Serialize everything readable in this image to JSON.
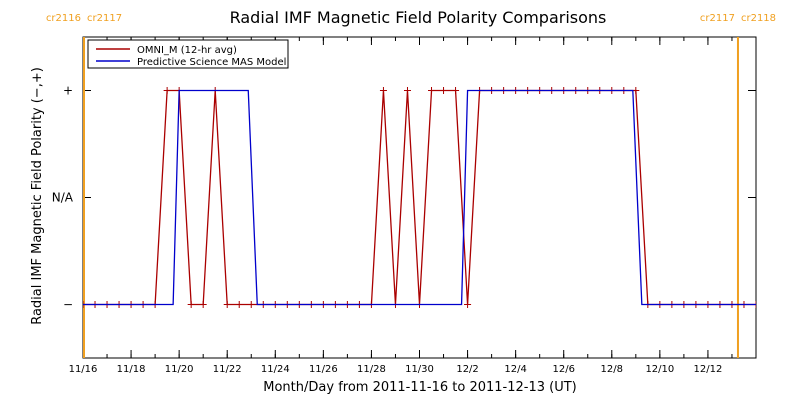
{
  "chart_data": {
    "type": "line",
    "title": "Radial IMF Magnetic Field Polarity Comparisons",
    "xlabel": "Month/Day from 2011-11-16 to 2011-12-13 (UT)",
    "ylabel": "Radial IMF Magnetic Field Polarity (−,+)",
    "x_range": [
      "2011-11-16T00:00",
      "2011-12-13T24:00"
    ],
    "ylim": [
      -1.5,
      1.5
    ],
    "y_ticks": [
      {
        "value": 1,
        "label": "+"
      },
      {
        "value": 0,
        "label": "N/A"
      },
      {
        "value": -1,
        "label": "−"
      }
    ],
    "x_ticks": [
      {
        "date": "2011-11-16",
        "label": "11/16"
      },
      {
        "date": "2011-11-18",
        "label": "11/18"
      },
      {
        "date": "2011-11-20",
        "label": "11/20"
      },
      {
        "date": "2011-11-22",
        "label": "11/22"
      },
      {
        "date": "2011-11-24",
        "label": "11/24"
      },
      {
        "date": "2011-11-26",
        "label": "11/26"
      },
      {
        "date": "2011-11-28",
        "label": "11/28"
      },
      {
        "date": "2011-11-30",
        "label": "11/30"
      },
      {
        "date": "2011-12-02",
        "label": "12/2"
      },
      {
        "date": "2011-12-04",
        "label": "12/4"
      },
      {
        "date": "2011-12-06",
        "label": "12/6"
      },
      {
        "date": "2011-12-08",
        "label": "12/8"
      },
      {
        "date": "2011-12-10",
        "label": "12/10"
      },
      {
        "date": "2011-12-12",
        "label": "12/12"
      }
    ],
    "carrington_rotations": [
      {
        "date": "2011-11-16T01:00",
        "left_label": "cr2116",
        "right_label": "cr2117"
      },
      {
        "date": "2011-12-13T06:00",
        "left_label": "cr2117",
        "right_label": "cr2118"
      }
    ],
    "legend_position": "top-left",
    "series": [
      {
        "name": "OMNI_M (12-hr avg)",
        "color": "#aa0000",
        "markers": true,
        "points": [
          [
            "2011-11-16T00:00",
            -1
          ],
          [
            "2011-11-16T12:00",
            -1
          ],
          [
            "2011-11-17T00:00",
            -1
          ],
          [
            "2011-11-17T12:00",
            -1
          ],
          [
            "2011-11-18T00:00",
            -1
          ],
          [
            "2011-11-18T12:00",
            -1
          ],
          [
            "2011-11-19T00:00",
            -1
          ],
          [
            "2011-11-19T12:00",
            1
          ],
          [
            "2011-11-20T00:00",
            1
          ],
          [
            "2011-11-20T12:00",
            -1
          ],
          [
            "2011-11-21T00:00",
            -1
          ],
          [
            "2011-11-21T12:00",
            1
          ],
          [
            "2011-11-22T00:00",
            -1
          ],
          [
            "2011-11-22T12:00",
            -1
          ],
          [
            "2011-11-23T00:00",
            -1
          ],
          [
            "2011-11-23T12:00",
            -1
          ],
          [
            "2011-11-24T00:00",
            -1
          ],
          [
            "2011-11-24T12:00",
            -1
          ],
          [
            "2011-11-25T00:00",
            -1
          ],
          [
            "2011-11-25T12:00",
            -1
          ],
          [
            "2011-11-26T00:00",
            -1
          ],
          [
            "2011-11-26T12:00",
            -1
          ],
          [
            "2011-11-27T00:00",
            -1
          ],
          [
            "2011-11-27T12:00",
            -1
          ],
          [
            "2011-11-28T00:00",
            -1
          ],
          [
            "2011-11-28T12:00",
            1
          ],
          [
            "2011-11-29T00:00",
            -1
          ],
          [
            "2011-11-29T12:00",
            1
          ],
          [
            "2011-11-30T00:00",
            -1
          ],
          [
            "2011-11-30T12:00",
            1
          ],
          [
            "2011-12-01T00:00",
            1
          ],
          [
            "2011-12-01T12:00",
            1
          ],
          [
            "2011-12-02T00:00",
            -1
          ],
          [
            "2011-12-02T12:00",
            1
          ],
          [
            "2011-12-03T00:00",
            1
          ],
          [
            "2011-12-03T12:00",
            1
          ],
          [
            "2011-12-04T00:00",
            1
          ],
          [
            "2011-12-04T12:00",
            1
          ],
          [
            "2011-12-05T00:00",
            1
          ],
          [
            "2011-12-05T12:00",
            1
          ],
          [
            "2011-12-06T00:00",
            1
          ],
          [
            "2011-12-06T12:00",
            1
          ],
          [
            "2011-12-07T00:00",
            1
          ],
          [
            "2011-12-07T12:00",
            1
          ],
          [
            "2011-12-08T00:00",
            1
          ],
          [
            "2011-12-08T12:00",
            1
          ],
          [
            "2011-12-09T00:00",
            1
          ],
          [
            "2011-12-09T12:00",
            -1
          ],
          [
            "2011-12-10T00:00",
            -1
          ],
          [
            "2011-12-10T12:00",
            -1
          ],
          [
            "2011-12-11T00:00",
            -1
          ],
          [
            "2011-12-11T12:00",
            -1
          ],
          [
            "2011-12-12T00:00",
            -1
          ],
          [
            "2011-12-12T12:00",
            -1
          ],
          [
            "2011-12-13T00:00",
            -1
          ],
          [
            "2011-12-13T12:00",
            -1
          ],
          [
            "2011-12-14T00:00",
            -1
          ]
        ]
      },
      {
        "name": "Predictive Science MAS Model",
        "color": "#0000cc",
        "markers": false,
        "points": [
          [
            "2011-11-16T00:00",
            -1
          ],
          [
            "2011-11-19T18:00",
            -1
          ],
          [
            "2011-11-20T00:00",
            1
          ],
          [
            "2011-11-22T21:00",
            1
          ],
          [
            "2011-11-23T06:00",
            -1
          ],
          [
            "2011-12-01T18:00",
            -1
          ],
          [
            "2011-12-02T00:00",
            1
          ],
          [
            "2011-12-08T21:00",
            1
          ],
          [
            "2011-12-09T06:00",
            -1
          ],
          [
            "2011-12-14T00:00",
            -1
          ]
        ]
      }
    ]
  }
}
